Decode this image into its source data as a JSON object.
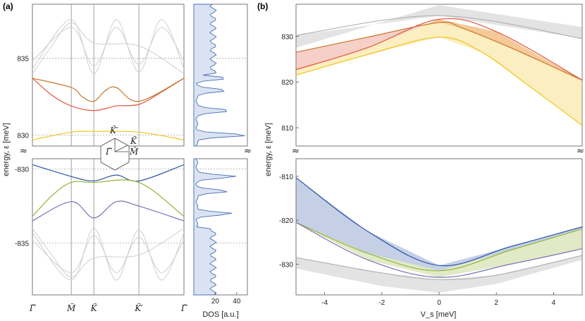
{
  "chart_data": [
    {
      "type": "line",
      "panel_label": "(a)",
      "title": "",
      "ylabel": "energy, ε [meV]",
      "y_ticks_upper": [
        "835",
        "830"
      ],
      "y_ticks_lower": [
        "-830",
        "-835"
      ],
      "ylim_upper": [
        829.3,
        838.5
      ],
      "ylim_lower": [
        -838.5,
        -829.3
      ],
      "break_symbol": "≈",
      "x_ticks": [
        "Γ̃",
        "M̃",
        "K̃",
        "K̃′",
        "Γ̃"
      ],
      "x_positions": [
        0,
        0.5,
        0.79,
        1.37,
        1.95
      ],
      "dashed_levels": [
        835,
        830,
        -830,
        -835
      ],
      "inset_labels": [
        "K̃′",
        "K̃",
        "Γ̃",
        "M̃"
      ],
      "series_upper": [
        {
          "name": "band-yellow",
          "color": "#f2c21b",
          "x": [
            0,
            0.5,
            0.79,
            1.37,
            1.95
          ],
          "values": [
            829.7,
            830.2,
            830.25,
            830.2,
            829.7
          ]
        },
        {
          "name": "band-red",
          "color": "#e0543a",
          "x": [
            0,
            0.25,
            0.5,
            0.79,
            1.08,
            1.37,
            1.66,
            1.95
          ],
          "values": [
            833.7,
            832.6,
            831.9,
            831.6,
            831.9,
            832.0,
            832.8,
            833.7
          ]
        },
        {
          "name": "band-orange",
          "color": "#c8762a",
          "x": [
            0,
            0.5,
            0.64,
            0.79,
            0.94,
            1.08,
            1.37,
            1.95
          ],
          "values": [
            833.7,
            833.1,
            832.5,
            832.2,
            832.9,
            833.1,
            832.2,
            833.7
          ]
        }
      ],
      "series_lower": [
        {
          "name": "band-blue",
          "color": "#2d55a5",
          "x": [
            0,
            0.5,
            0.79,
            1.08,
            1.37,
            1.95
          ],
          "values": [
            -829.7,
            -830.5,
            -830.8,
            -830.4,
            -830.8,
            -829.7
          ]
        },
        {
          "name": "band-green",
          "color": "#93b437",
          "x": [
            0,
            0.25,
            0.5,
            0.79,
            1.37,
            1.95
          ],
          "values": [
            -833.2,
            -831.8,
            -830.9,
            -830.9,
            -830.9,
            -833.2
          ]
        },
        {
          "name": "band-purple",
          "color": "#7b6fb5",
          "x": [
            0,
            0.5,
            0.79,
            1.08,
            1.37,
            1.95
          ],
          "values": [
            -833.5,
            -832.2,
            -833.3,
            -832.2,
            -832.5,
            -833.5
          ]
        }
      ],
      "series_gray_upper": [
        {
          "x": [
            0,
            0.5,
            0.79,
            1.08,
            1.37,
            1.66,
            1.95
          ],
          "values": [
            834.8,
            837.0,
            834.5,
            837.0,
            834.6,
            837.0,
            834.8
          ]
        },
        {
          "x": [
            0,
            0.5,
            0.79,
            1.08,
            1.37,
            1.66,
            1.95
          ],
          "values": [
            834.3,
            837.5,
            834.0,
            837.5,
            834.1,
            837.5,
            834.3
          ]
        },
        {
          "x": [
            0,
            0.25,
            0.5,
            0.79,
            1.37,
            1.95
          ],
          "values": [
            834.0,
            835.8,
            837.3,
            836.0,
            835.8,
            834.0
          ]
        }
      ],
      "series_gray_lower": [
        {
          "x": [
            0,
            0.5,
            0.79,
            1.08,
            1.37,
            1.66,
            1.95
          ],
          "values": [
            -834.8,
            -837.0,
            -834.5,
            -837.0,
            -834.6,
            -837.0,
            -834.8
          ]
        },
        {
          "x": [
            0,
            0.5,
            0.79,
            1.08,
            1.37,
            1.66,
            1.95
          ],
          "values": [
            -834.3,
            -837.5,
            -834.0,
            -837.5,
            -834.1,
            -837.5,
            -834.3
          ]
        },
        {
          "x": [
            0,
            0.25,
            0.5,
            0.79,
            1.37,
            1.95
          ],
          "values": [
            -834.0,
            -835.8,
            -837.3,
            -836.0,
            -835.8,
            -834.0
          ]
        }
      ]
    },
    {
      "type": "area",
      "title": "",
      "xlabel": "DOS [a.u.]",
      "x_ticks": [
        "20",
        "40"
      ],
      "xlim": [
        0,
        50
      ],
      "fill_color": "#dbe3f2",
      "line_color": "#4a72b8",
      "peaks_upper": [
        {
          "energy": 830.0,
          "value": 48
        },
        {
          "energy": 831.6,
          "value": 33
        },
        {
          "energy": 832.9,
          "value": 29
        },
        {
          "energy": 833.7,
          "value": 28
        }
      ],
      "peaks_lower": [
        {
          "energy": -830.5,
          "value": 38
        },
        {
          "energy": -831.5,
          "value": 30
        },
        {
          "energy": -833.0,
          "value": 33
        }
      ]
    },
    {
      "type": "line",
      "panel_label": "(b)",
      "title": "",
      "xlabel": "V_s [meV]",
      "ylabel": "energy, ε [meV]",
      "x_ticks": [
        "-4",
        "-2",
        "0",
        "2",
        "4"
      ],
      "xlim": [
        -5,
        5
      ],
      "y_ticks_upper": [
        "830",
        "820",
        "810"
      ],
      "y_ticks_lower": [
        "-810",
        "-820",
        "-830"
      ],
      "ylim_upper": [
        806,
        837
      ],
      "ylim_lower": [
        -837,
        -806
      ],
      "break_symbol": "≈",
      "series_upper": [
        {
          "name": "branch-orange",
          "color": "#c8762a",
          "x": [
            -5,
            -2.5,
            0,
            0.8,
            2.5,
            5
          ],
          "values": [
            826.5,
            829.8,
            833.0,
            831.8,
            827.5,
            820.4
          ]
        },
        {
          "name": "branch-red",
          "color": "#e0543a",
          "x": [
            -5,
            -2.5,
            0,
            2,
            5
          ],
          "values": [
            822.7,
            827.5,
            833.7,
            831.0,
            820.4
          ]
        },
        {
          "name": "branch-yellow",
          "color": "#f2c21b",
          "x": [
            -5,
            -2.5,
            0,
            1.5,
            3,
            5
          ],
          "values": [
            821.5,
            826.0,
            829.8,
            826.5,
            819.8,
            810.5
          ]
        }
      ],
      "series_lower": [
        {
          "name": "branch-blue",
          "color": "#2d55a5",
          "x": [
            -5,
            -2.5,
            0,
            2.5,
            5
          ],
          "values": [
            -810.3,
            -822.5,
            -830.3,
            -826.0,
            -821.5
          ]
        },
        {
          "name": "branch-green",
          "color": "#93b437",
          "x": [
            -5,
            -2.5,
            0,
            2.5,
            5
          ],
          "values": [
            -820.5,
            -827.5,
            -831.5,
            -826.8,
            -822.0
          ]
        },
        {
          "name": "branch-purple",
          "color": "#7b6fb5",
          "x": [
            -5,
            -2.5,
            0,
            2.5,
            5
          ],
          "values": [
            -820.5,
            -829.0,
            -833.0,
            -830.0,
            -826.5
          ]
        }
      ]
    }
  ]
}
